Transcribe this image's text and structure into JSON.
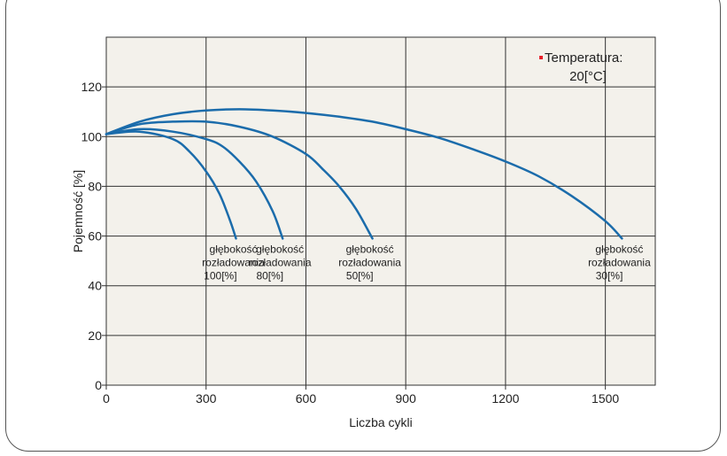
{
  "chart_data": {
    "type": "line",
    "xlabel": "Liczba cykli",
    "ylabel": "Pojemność [%]",
    "xlim": [
      0,
      1650
    ],
    "ylim": [
      0,
      140
    ],
    "x_ticks": [
      0,
      300,
      600,
      900,
      1200,
      1500
    ],
    "y_ticks": [
      0,
      20,
      40,
      60,
      80,
      100,
      120
    ],
    "grid": true,
    "legend": {
      "position": "top-right",
      "lines": [
        "Temperatura:",
        "20[°C]"
      ],
      "marker_color": "#e8202a"
    },
    "colors": {
      "background": "#f3f1eb",
      "line": "#1b6cab",
      "grid": "#333333"
    },
    "series": [
      {
        "x": [
          0,
          100,
          200,
          250,
          300,
          340,
          370,
          390
        ],
        "y": [
          101,
          102,
          99,
          94,
          86,
          77,
          67,
          59
        ],
        "label_lines": [
          "głębokość",
          "rozładowania",
          "100[%]"
        ]
      },
      {
        "x": [
          0,
          100,
          200,
          300,
          350,
          400,
          450,
          500,
          530
        ],
        "y": [
          101,
          103,
          102,
          99,
          96,
          90,
          82,
          70,
          59
        ],
        "label_lines": [
          "głębokość",
          "rozładowania",
          "80[%]"
        ]
      },
      {
        "x": [
          0,
          100,
          200,
          300,
          400,
          500,
          600,
          650,
          700,
          750,
          800
        ],
        "y": [
          101,
          105,
          106,
          106,
          104,
          100,
          93,
          87,
          80,
          71,
          59
        ],
        "label_lines": [
          "głębokość",
          "rozładowania",
          "50[%]"
        ]
      },
      {
        "x": [
          0,
          100,
          200,
          300,
          400,
          500,
          600,
          700,
          800,
          900,
          1000,
          1100,
          1200,
          1300,
          1400,
          1500,
          1550
        ],
        "y": [
          101,
          106,
          109,
          110.5,
          111,
          110.5,
          109.5,
          108,
          106,
          103,
          99.5,
          95,
          90,
          84,
          76,
          66,
          59
        ],
        "label_lines": [
          "głębokość",
          "rozładowania",
          "30[%]"
        ]
      }
    ]
  }
}
